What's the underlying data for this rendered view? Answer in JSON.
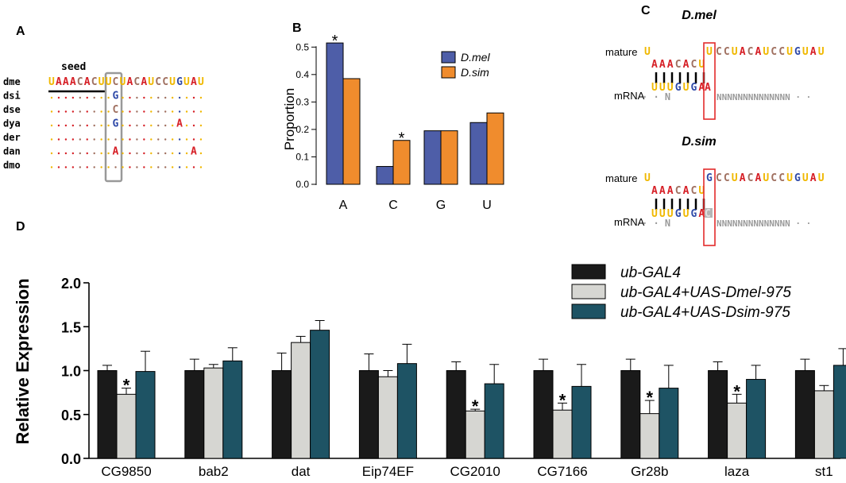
{
  "panels": {
    "a": "A",
    "b": "B",
    "c": "C",
    "d": "D"
  },
  "panel_a": {
    "seed_label": "seed",
    "species": [
      "dme",
      "dsi",
      "dse",
      "dya",
      "der",
      "dan",
      "dmo"
    ],
    "dme_seq": "UAAACACUUCUACAUCCUGUAU",
    "column_variants": [
      "",
      "G",
      "C",
      "G",
      "",
      "A",
      ""
    ],
    "other_variants": [
      {
        "row": "dya",
        "char": "A"
      },
      {
        "row": "dan",
        "char": "A"
      }
    ]
  },
  "panel_c": {
    "title_mel": "D.mel",
    "title_sim": "D.sim",
    "mature_label": "mature",
    "mrna_label": "mRNA",
    "mel_top_prefix": "U",
    "mel_seed": "AAACACU",
    "mel_boxed_top": "U",
    "mel_rest": "CCUACAUCCUGUAU",
    "mel_mrna": "UUUGUGA",
    "mel_boxed_bottom": "A",
    "sim_seed": "AAACACU",
    "sim_boxed_top": "G",
    "sim_rest": "CCUACAUCCUGUAU",
    "sim_mrna": "UUUGUGA",
    "sim_boxed_bottom": "C",
    "n_left": "N",
    "n_right": "NNNNNNNNNNNNNN"
  },
  "chart_data": [
    {
      "type": "bar",
      "title": "",
      "ylabel": "Proportion",
      "xlabel": "",
      "categories": [
        "A",
        "C",
        "G",
        "U"
      ],
      "ylim": [
        0,
        0.55
      ],
      "yticks": [
        "0.0",
        "0.1",
        "0.2",
        "0.3",
        "0.4",
        "0.5"
      ],
      "legend": [
        "D.mel",
        "D.sim"
      ],
      "series": [
        {
          "name": "D.mel",
          "color": "#4e5ea8",
          "values": [
            0.515,
            0.065,
            0.195,
            0.225
          ]
        },
        {
          "name": "D.sim",
          "color": "#f08c2d",
          "values": [
            0.385,
            0.16,
            0.195,
            0.26
          ]
        }
      ],
      "significance": [
        {
          "category": "A",
          "series": "D.mel",
          "mark": "*"
        },
        {
          "category": "C",
          "series": "D.sim",
          "mark": "*"
        }
      ]
    },
    {
      "type": "bar",
      "title": "",
      "ylabel": "Relative Expression",
      "xlabel": "",
      "categories": [
        "CG9850",
        "bab2",
        "dat",
        "Eip74EF",
        "CG2010",
        "CG7166",
        "Gr28b",
        "laza",
        "st1"
      ],
      "ylim": [
        0,
        2.0
      ],
      "yticks": [
        "0.0",
        "0.5",
        "1.0",
        "1.5",
        "2.0"
      ],
      "legend": [
        "ub-GAL4",
        "ub-GAL4+UAS-Dmel-975",
        "ub-GAL4+UAS-Dsim-975"
      ],
      "series": [
        {
          "name": "ub-GAL4",
          "color": "#1a1a1a",
          "values": [
            1.0,
            1.0,
            1.0,
            1.0,
            1.0,
            1.0,
            1.0,
            1.0,
            1.0
          ],
          "errors": [
            0.06,
            0.13,
            0.2,
            0.19,
            0.1,
            0.13,
            0.13,
            0.1,
            0.13
          ]
        },
        {
          "name": "ub-GAL4+UAS-Dmel-975",
          "color": "#d6d6d2",
          "values": [
            0.73,
            1.03,
            1.32,
            0.93,
            0.54,
            0.55,
            0.51,
            0.63,
            0.77
          ],
          "errors": [
            0.07,
            0.04,
            0.07,
            0.07,
            0.02,
            0.08,
            0.15,
            0.1,
            0.06
          ]
        },
        {
          "name": "ub-GAL4+UAS-Dsim-975",
          "color": "#1e5364",
          "values": [
            0.99,
            1.11,
            1.46,
            1.08,
            0.85,
            0.82,
            0.8,
            0.9,
            1.06
          ],
          "errors": [
            0.23,
            0.15,
            0.11,
            0.22,
            0.22,
            0.25,
            0.26,
            0.16,
            0.19
          ]
        }
      ],
      "significance": [
        {
          "category": "CG9850",
          "series": "ub-GAL4+UAS-Dmel-975",
          "mark": "*"
        },
        {
          "category": "CG2010",
          "series": "ub-GAL4+UAS-Dmel-975",
          "mark": "*"
        },
        {
          "category": "CG7166",
          "series": "ub-GAL4+UAS-Dmel-975",
          "mark": "*"
        },
        {
          "category": "Gr28b",
          "series": "ub-GAL4+UAS-Dmel-975",
          "mark": "*"
        },
        {
          "category": "laza",
          "series": "ub-GAL4+UAS-Dmel-975",
          "mark": "*"
        }
      ]
    }
  ]
}
